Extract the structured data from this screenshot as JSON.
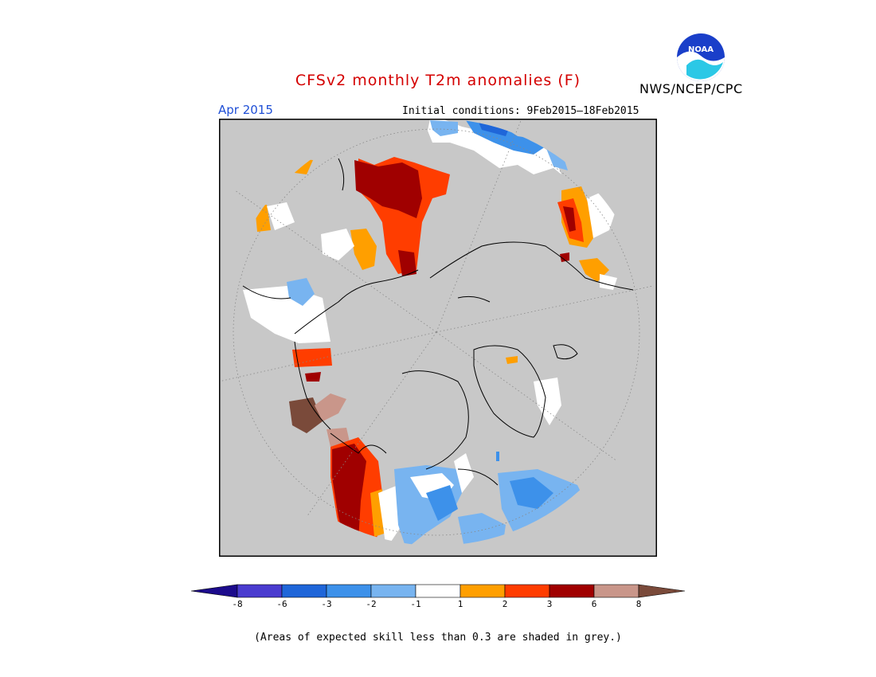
{
  "header": {
    "title": "CFSv2 monthly T2m anomalies (F)",
    "org": "NWS/NCEP/CPC",
    "logo_text": "NOAA",
    "month": "Apr 2015",
    "initial_conditions": "Initial conditions: 9Feb2015–18Feb2015"
  },
  "map": {
    "projection": "north-polar-stereographic",
    "background_color": "#c8c8c8",
    "grid_style": "dotted"
  },
  "colorbar": {
    "orientation": "horizontal",
    "tick_labels": [
      "-8",
      "-6",
      "-3",
      "-2",
      "-1",
      "1",
      "2",
      "3",
      "6",
      "8"
    ],
    "colors": [
      "#1c0b8c",
      "#4a3ccf",
      "#1f66d9",
      "#3d91ea",
      "#78b4f0",
      "#ffffff",
      "#ff9f00",
      "#ff3d00",
      "#a00000",
      "#c9968a",
      "#7a4a3a"
    ]
  },
  "footnote": "(Areas of expected skill less than 0.3 are shaded in grey.)"
}
